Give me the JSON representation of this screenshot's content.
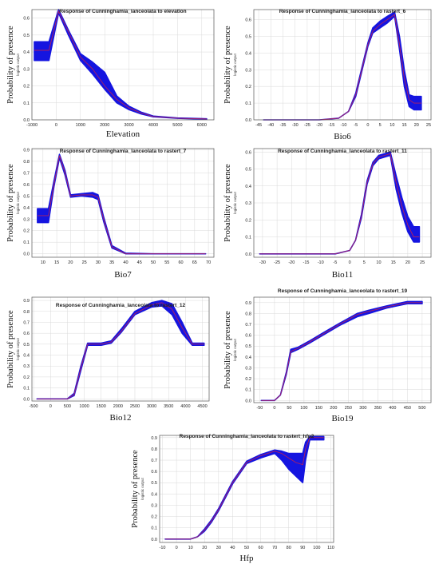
{
  "colors": {
    "band": "#1515e0",
    "mean": "#b02060",
    "grid": "#d9d9d9",
    "frame": "#555555"
  },
  "chart_data": [
    {
      "type": "line",
      "title": "Response of Cunninghamia_lanceolata to elevation",
      "xlabel": "Elevation",
      "ylabel": "Probability of presence",
      "ysublabel": "logistic output",
      "xlim": [
        -1000,
        6500
      ],
      "ylim": [
        0,
        0.65
      ],
      "xticks": [
        -1000,
        0,
        1000,
        2000,
        3000,
        4000,
        5000,
        6000
      ],
      "yticks": [
        0,
        0.1,
        0.2,
        0.3,
        0.4,
        0.5,
        0.6
      ],
      "x": [
        -900,
        -300,
        100,
        500,
        1000,
        1500,
        2000,
        2500,
        3000,
        3500,
        4000,
        5000,
        6200
      ],
      "mean": [
        0.41,
        0.41,
        0.64,
        0.52,
        0.37,
        0.3,
        0.2,
        0.12,
        0.07,
        0.04,
        0.02,
        0.01,
        0.005
      ],
      "upper": [
        0.46,
        0.46,
        0.65,
        0.53,
        0.39,
        0.34,
        0.28,
        0.14,
        0.08,
        0.045,
        0.022,
        0.011,
        0.006
      ],
      "lower": [
        0.35,
        0.35,
        0.63,
        0.5,
        0.35,
        0.27,
        0.18,
        0.1,
        0.06,
        0.035,
        0.018,
        0.009,
        0.004
      ]
    },
    {
      "type": "line",
      "title": "Response of Cunninghamia_lanceolata to rastert_6",
      "xlabel": "Bio6",
      "ylabel": "Probability of presence",
      "ysublabel": "logistic output",
      "xlim": [
        -47,
        26
      ],
      "ylim": [
        0,
        0.66
      ],
      "xticks": [
        -45,
        -40,
        -35,
        -30,
        -25,
        -20,
        -15,
        -10,
        -5,
        0,
        5,
        10,
        15,
        20,
        25
      ],
      "yticks": [
        0,
        0.1,
        0.2,
        0.3,
        0.4,
        0.5,
        0.6
      ],
      "x": [
        -43,
        -20,
        -12,
        -8,
        -5,
        -2,
        0,
        2,
        5,
        8,
        11,
        13,
        15,
        17,
        19,
        22
      ],
      "mean": [
        0.0,
        0.0,
        0.01,
        0.05,
        0.15,
        0.33,
        0.45,
        0.53,
        0.57,
        0.6,
        0.63,
        0.45,
        0.25,
        0.12,
        0.1,
        0.1
      ],
      "upper": [
        0.0,
        0.0,
        0.01,
        0.05,
        0.16,
        0.34,
        0.46,
        0.55,
        0.59,
        0.62,
        0.645,
        0.5,
        0.3,
        0.15,
        0.14,
        0.14
      ],
      "lower": [
        0.0,
        0.0,
        0.01,
        0.05,
        0.14,
        0.32,
        0.44,
        0.52,
        0.55,
        0.58,
        0.62,
        0.42,
        0.2,
        0.08,
        0.06,
        0.06
      ]
    },
    {
      "type": "line",
      "title": "Response of Cunninghamia_lanceolata to rastert_7",
      "xlabel": "Bio7",
      "ylabel": "Probability of presence",
      "ysublabel": "logistic output",
      "xlim": [
        6,
        72
      ],
      "ylim": [
        -0.03,
        0.91
      ],
      "xticks": [
        10,
        15,
        20,
        25,
        30,
        35,
        40,
        45,
        50,
        55,
        60,
        65,
        70
      ],
      "yticks": [
        0,
        0.1,
        0.2,
        0.3,
        0.4,
        0.5,
        0.6,
        0.7,
        0.8,
        0.9
      ],
      "x": [
        8,
        12,
        14,
        16,
        18,
        20,
        24,
        28,
        30,
        32,
        35,
        40,
        50,
        60,
        69
      ],
      "mean": [
        0.33,
        0.33,
        0.6,
        0.85,
        0.7,
        0.5,
        0.51,
        0.51,
        0.49,
        0.3,
        0.06,
        0.0,
        0.0,
        0.0,
        0.0
      ],
      "upper": [
        0.39,
        0.39,
        0.63,
        0.86,
        0.72,
        0.51,
        0.52,
        0.53,
        0.51,
        0.32,
        0.07,
        0.005,
        0.0,
        0.0,
        0.0
      ],
      "lower": [
        0.27,
        0.27,
        0.58,
        0.83,
        0.68,
        0.49,
        0.5,
        0.49,
        0.47,
        0.28,
        0.05,
        0.0,
        0.0,
        0.0,
        0.0
      ]
    },
    {
      "type": "line",
      "title": "Response of Cunninghamia_lanceolata to rastert_11",
      "xlabel": "Bio11",
      "ylabel": "Probability of presence",
      "ysublabel": "logistic output",
      "xlim": [
        -33,
        28
      ],
      "ylim": [
        -0.02,
        0.62
      ],
      "xticks": [
        -30,
        -25,
        -20,
        -15,
        -10,
        -5,
        0,
        5,
        10,
        15,
        20,
        25
      ],
      "yticks": [
        0,
        0.1,
        0.2,
        0.3,
        0.4,
        0.5,
        0.6
      ],
      "x": [
        -31,
        -5,
        0,
        2,
        4,
        6,
        8,
        10,
        12,
        14,
        16,
        18,
        20,
        22,
        24
      ],
      "mean": [
        0.0,
        0.0,
        0.02,
        0.08,
        0.22,
        0.42,
        0.53,
        0.57,
        0.58,
        0.59,
        0.42,
        0.28,
        0.17,
        0.1,
        0.1
      ],
      "upper": [
        0.0,
        0.0,
        0.02,
        0.08,
        0.23,
        0.43,
        0.54,
        0.58,
        0.59,
        0.6,
        0.46,
        0.33,
        0.22,
        0.16,
        0.16
      ],
      "lower": [
        0.0,
        0.0,
        0.02,
        0.08,
        0.21,
        0.41,
        0.52,
        0.56,
        0.57,
        0.58,
        0.38,
        0.24,
        0.13,
        0.07,
        0.07
      ]
    },
    {
      "type": "line",
      "title": "Response of Cunninghamia_lanceolata to rastert_12",
      "xlabel": "Bio12",
      "ylabel": "Probability of presence",
      "ysublabel": "logistic output",
      "xlim": [
        -550,
        4700
      ],
      "ylim": [
        -0.02,
        0.93
      ],
      "xticks": [
        -500,
        0,
        500,
        1000,
        1500,
        2000,
        2500,
        3000,
        3500,
        4000,
        4500
      ],
      "yticks": [
        0,
        0.1,
        0.2,
        0.3,
        0.4,
        0.5,
        0.6,
        0.7,
        0.8,
        0.9
      ],
      "x": [
        -400,
        500,
        700,
        900,
        1100,
        1500,
        1800,
        2100,
        2500,
        3000,
        3300,
        3600,
        3900,
        4200,
        4550
      ],
      "mean": [
        0.0,
        0.0,
        0.04,
        0.28,
        0.5,
        0.5,
        0.52,
        0.62,
        0.78,
        0.86,
        0.88,
        0.82,
        0.65,
        0.5,
        0.5
      ],
      "upper": [
        0.0,
        0.0,
        0.05,
        0.3,
        0.51,
        0.51,
        0.53,
        0.64,
        0.8,
        0.88,
        0.9,
        0.87,
        0.7,
        0.51,
        0.51
      ],
      "lower": [
        0.0,
        0.0,
        0.03,
        0.26,
        0.49,
        0.49,
        0.51,
        0.61,
        0.77,
        0.84,
        0.85,
        0.77,
        0.6,
        0.49,
        0.49
      ]
    },
    {
      "type": "line",
      "title": "Response of Cunninghamia_lanceolata to rastert_19",
      "xlabel": "Bio19",
      "ylabel": "Probability of presence",
      "ysublabel": "logistic output",
      "xlim": [
        -70,
        530
      ],
      "ylim": [
        -0.02,
        0.95
      ],
      "xticks": [
        -50,
        0,
        50,
        100,
        150,
        200,
        250,
        300,
        350,
        400,
        450,
        500
      ],
      "yticks": [
        0,
        0.1,
        0.2,
        0.3,
        0.4,
        0.5,
        0.6,
        0.7,
        0.8,
        0.9
      ],
      "x": [
        -45,
        0,
        20,
        40,
        55,
        80,
        120,
        170,
        220,
        280,
        320,
        380,
        450,
        500
      ],
      "mean": [
        0.0,
        0.0,
        0.05,
        0.25,
        0.45,
        0.48,
        0.54,
        0.62,
        0.7,
        0.79,
        0.82,
        0.86,
        0.9,
        0.9
      ],
      "upper": [
        0.0,
        0.0,
        0.05,
        0.26,
        0.47,
        0.49,
        0.55,
        0.63,
        0.71,
        0.8,
        0.83,
        0.87,
        0.91,
        0.91
      ],
      "lower": [
        0.0,
        0.0,
        0.05,
        0.24,
        0.44,
        0.47,
        0.53,
        0.61,
        0.69,
        0.77,
        0.8,
        0.85,
        0.89,
        0.89
      ]
    },
    {
      "type": "line",
      "title": "Response of Cunninghamia_lanceolata to rastert_hfp2",
      "xlabel": "Hfp",
      "ylabel": "Probability of presence",
      "ysublabel": "logistic output",
      "xlim": [
        -12,
        112
      ],
      "ylim": [
        -0.03,
        0.92
      ],
      "xticks": [
        -10,
        0,
        10,
        20,
        30,
        40,
        50,
        60,
        70,
        80,
        90,
        100,
        110
      ],
      "yticks": [
        0,
        0.1,
        0.2,
        0.3,
        0.4,
        0.5,
        0.6,
        0.7,
        0.8,
        0.9
      ],
      "x": [
        -8,
        10,
        15,
        20,
        25,
        30,
        40,
        50,
        60,
        70,
        75,
        80,
        85,
        90,
        92,
        95,
        100,
        105
      ],
      "mean": [
        0.0,
        0.0,
        0.02,
        0.08,
        0.16,
        0.26,
        0.5,
        0.68,
        0.74,
        0.78,
        0.76,
        0.72,
        0.68,
        0.66,
        0.8,
        0.9,
        0.9,
        0.9
      ],
      "upper": [
        0.0,
        0.0,
        0.02,
        0.09,
        0.17,
        0.27,
        0.51,
        0.69,
        0.75,
        0.79,
        0.78,
        0.76,
        0.76,
        0.76,
        0.86,
        0.91,
        0.91,
        0.91
      ],
      "lower": [
        0.0,
        0.0,
        0.02,
        0.07,
        0.15,
        0.25,
        0.49,
        0.67,
        0.72,
        0.76,
        0.7,
        0.62,
        0.56,
        0.5,
        0.7,
        0.88,
        0.88,
        0.88
      ]
    }
  ]
}
